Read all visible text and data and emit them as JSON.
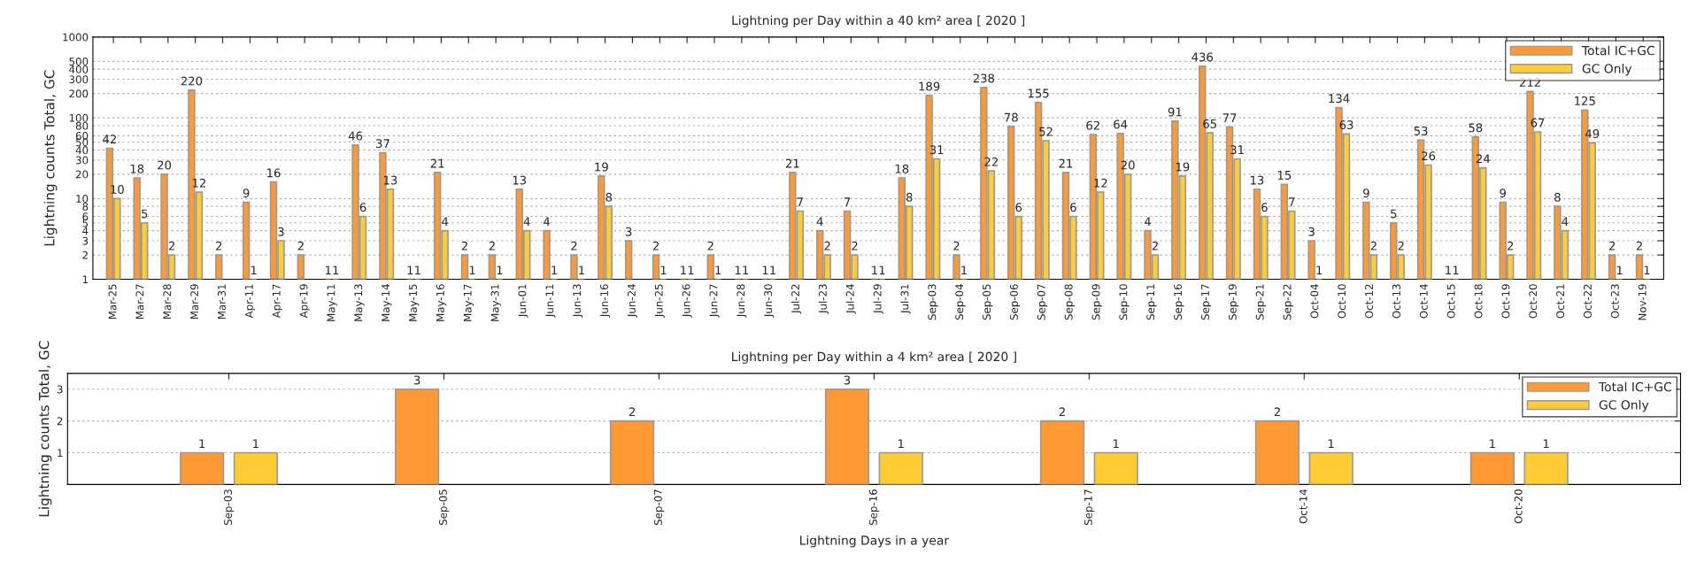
{
  "chart_data": [
    {
      "type": "bar",
      "title": "Lightning per Day within a 40 km² area [ 2020 ]",
      "ylabel": "Lightning counts Total, GC",
      "categories": [
        "Mar-25",
        "Mar-27",
        "Mar-28",
        "Mar-29",
        "Mar-31",
        "Apr-11",
        "Apr-17",
        "Apr-19",
        "May-11",
        "May-13",
        "May-14",
        "May-15",
        "May-16",
        "May-17",
        "May-31",
        "Jun-01",
        "Jun-11",
        "Jun-13",
        "Jun-16",
        "Jun-24",
        "Jun-25",
        "Jun-26",
        "Jun-27",
        "Jun-28",
        "Jun-30",
        "Jul-22",
        "Jul-23",
        "Jul-24",
        "Jul-29",
        "Jul-31",
        "Sep-03",
        "Sep-04",
        "Sep-05",
        "Sep-06",
        "Sep-07",
        "Sep-08",
        "Sep-09",
        "Sep-10",
        "Sep-11",
        "Sep-16",
        "Sep-17",
        "Sep-19",
        "Sep-21",
        "Sep-22",
        "Oct-04",
        "Oct-10",
        "Oct-12",
        "Oct-13",
        "Oct-14",
        "Oct-15",
        "Oct-18",
        "Oct-19",
        "Oct-20",
        "Oct-21",
        "Oct-22",
        "Oct-23",
        "Nov-19"
      ],
      "series": [
        {
          "name": "Total IC+GC",
          "color": "#ff9933",
          "values": [
            42,
            18,
            20,
            220,
            2,
            9,
            16,
            2,
            1,
            46,
            37,
            1,
            21,
            2,
            2,
            13,
            4,
            2,
            19,
            3,
            2,
            1,
            2,
            1,
            1,
            21,
            4,
            7,
            1,
            18,
            189,
            2,
            238,
            78,
            155,
            21,
            62,
            64,
            4,
            91,
            436,
            77,
            13,
            15,
            3,
            134,
            9,
            5,
            53,
            1,
            58,
            9,
            212,
            8,
            125,
            2,
            2
          ]
        },
        {
          "name": "GC Only",
          "color": "#ffcc33",
          "values": [
            10,
            5,
            2,
            12,
            null,
            1,
            3,
            null,
            1,
            6,
            13,
            1,
            4,
            1,
            1,
            4,
            1,
            1,
            8,
            null,
            1,
            1,
            1,
            1,
            1,
            7,
            2,
            2,
            1,
            8,
            31,
            1,
            22,
            6,
            52,
            6,
            12,
            20,
            2,
            19,
            65,
            31,
            6,
            7,
            1,
            63,
            2,
            2,
            26,
            1,
            24,
            2,
            67,
            4,
            49,
            1,
            1
          ]
        }
      ],
      "log": "y",
      "ylim": [
        1,
        1000
      ],
      "yticks": [
        1,
        2,
        3,
        4,
        5,
        6,
        8,
        10,
        20,
        30,
        40,
        50,
        60,
        80,
        100,
        200,
        300,
        400,
        500,
        1000
      ],
      "grid": "y",
      "legend": "top right",
      "data_labels": true
    },
    {
      "type": "bar",
      "title": "Lightning per Day within a 4 km² area [ 2020 ]",
      "ylabel": "Lightning counts Total, GC",
      "xlabel": "Lightning Days in a year",
      "categories": [
        "Sep-03",
        "Sep-05",
        "Sep-07",
        "Sep-16",
        "Sep-17",
        "Oct-14",
        "Oct-20"
      ],
      "series": [
        {
          "name": "Total IC+GC",
          "color": "#ff9933",
          "values": [
            1,
            3,
            2,
            3,
            2,
            2,
            1
          ]
        },
        {
          "name": "GC Only",
          "color": "#ffcc33",
          "values": [
            1,
            null,
            null,
            1,
            1,
            1,
            1
          ]
        }
      ],
      "ylim": [
        0,
        3.5
      ],
      "yticks": [
        1,
        2,
        3
      ],
      "grid": "y",
      "legend": "top right",
      "data_labels": true
    }
  ]
}
